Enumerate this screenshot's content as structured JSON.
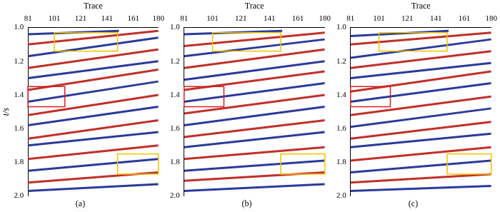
{
  "chart_data": [
    {
      "type": "line",
      "title": "(a)",
      "x_label": "Trace",
      "y_label": "t/s",
      "xlim": [
        81,
        180
      ],
      "xticks": [
        81,
        101,
        121,
        141,
        161,
        180
      ],
      "ylim": [
        1.0,
        2.0
      ],
      "yticks": [
        {
          "value": 1.0,
          "label": "1.0"
        },
        1.2,
        1.4,
        1.6,
        1.8,
        {
          "value": 2.0,
          "label": "2.0"
        }
      ],
      "grid": false,
      "boxes": [
        {
          "x": [
            101,
            149
          ],
          "y": [
            1.03,
            1.14
          ],
          "color": "#f2c200"
        },
        {
          "x": [
            81,
            109
          ],
          "y": [
            1.35,
            1.47
          ],
          "color": "#d62020"
        },
        {
          "x": [
            149,
            180
          ],
          "y": [
            1.75,
            1.87
          ],
          "color": "#f2c200"
        }
      ],
      "series": [
        {
          "color": "#2b3a9a",
          "x": [
            81,
            150
          ],
          "values": [
            1.04,
            1.02
          ]
        },
        {
          "color": "#c0302a",
          "x": [
            81,
            180
          ],
          "values": [
            1.1,
            1.02
          ]
        },
        {
          "color": "#2b3a9a",
          "x": [
            81,
            180
          ],
          "values": [
            1.17,
            1.06
          ]
        },
        {
          "color": "#c0302a",
          "x": [
            81,
            180
          ],
          "values": [
            1.24,
            1.13
          ]
        },
        {
          "color": "#2b3a9a",
          "x": [
            81,
            180
          ],
          "values": [
            1.3,
            1.2
          ]
        },
        {
          "color": "#c0302a",
          "x": [
            81,
            180
          ],
          "values": [
            1.37,
            1.25
          ]
        },
        {
          "color": "#2b3a9a",
          "x": [
            81,
            180
          ],
          "values": [
            1.44,
            1.32
          ]
        },
        {
          "color": "#c0302a",
          "x": [
            81,
            180
          ],
          "values": [
            1.52,
            1.4
          ]
        },
        {
          "color": "#2b3a9a",
          "x": [
            81,
            180
          ],
          "values": [
            1.58,
            1.47
          ]
        },
        {
          "color": "#c0302a",
          "x": [
            81,
            180
          ],
          "values": [
            1.66,
            1.55
          ]
        },
        {
          "color": "#2b3a9a",
          "x": [
            81,
            180
          ],
          "values": [
            1.7,
            1.62
          ]
        },
        {
          "color": "#c0302a",
          "x": [
            81,
            180
          ],
          "values": [
            1.78,
            1.7
          ]
        },
        {
          "color": "#2b3a9a",
          "x": [
            81,
            180
          ],
          "values": [
            1.85,
            1.78
          ]
        },
        {
          "color": "#c0302a",
          "x": [
            81,
            180
          ],
          "values": [
            1.92,
            1.86
          ]
        },
        {
          "color": "#2b3a9a",
          "x": [
            81,
            180
          ],
          "values": [
            1.97,
            1.93
          ]
        }
      ]
    },
    {
      "type": "line",
      "title": "(b)",
      "x_label": "Trace",
      "xlim": [
        81,
        180
      ],
      "xticks": [
        81,
        101,
        121,
        141,
        161,
        180
      ],
      "ylim": [
        1.0,
        2.0
      ],
      "yticks": [
        {
          "value": 1.0,
          "label": "1.0"
        },
        1.2,
        1.4,
        1.6,
        1.8,
        {
          "value": 2.0,
          "label": "2.0"
        }
      ],
      "grid": false,
      "boxes": [
        {
          "x": [
            101,
            149
          ],
          "y": [
            1.03,
            1.14
          ],
          "color": "#f2c200"
        },
        {
          "x": [
            81,
            109
          ],
          "y": [
            1.35,
            1.47
          ],
          "color": "#d62020"
        },
        {
          "x": [
            149,
            180
          ],
          "y": [
            1.75,
            1.87
          ],
          "color": "#f2c200"
        }
      ],
      "series": [
        {
          "color": "#2b3a9a",
          "x": [
            81,
            150
          ],
          "values": [
            1.04,
            1.02
          ]
        },
        {
          "color": "#c0302a",
          "x": [
            81,
            180
          ],
          "values": [
            1.11,
            1.03
          ]
        },
        {
          "color": "#2b3a9a",
          "x": [
            81,
            180
          ],
          "values": [
            1.17,
            1.07
          ]
        },
        {
          "color": "#c0302a",
          "x": [
            81,
            180
          ],
          "values": [
            1.24,
            1.13
          ]
        },
        {
          "color": "#2b3a9a",
          "x": [
            81,
            180
          ],
          "values": [
            1.31,
            1.2
          ]
        },
        {
          "color": "#c0302a",
          "x": [
            81,
            180
          ],
          "values": [
            1.37,
            1.26
          ]
        },
        {
          "color": "#2b3a9a",
          "x": [
            81,
            180
          ],
          "values": [
            1.44,
            1.33
          ]
        },
        {
          "color": "#c0302a",
          "x": [
            81,
            180
          ],
          "values": [
            1.51,
            1.4
          ]
        },
        {
          "color": "#2b3a9a",
          "x": [
            81,
            180
          ],
          "values": [
            1.58,
            1.47
          ]
        },
        {
          "color": "#c0302a",
          "x": [
            81,
            180
          ],
          "values": [
            1.65,
            1.55
          ]
        },
        {
          "color": "#2b3a9a",
          "x": [
            81,
            180
          ],
          "values": [
            1.71,
            1.62
          ]
        },
        {
          "color": "#c0302a",
          "x": [
            81,
            180
          ],
          "values": [
            1.78,
            1.71
          ]
        },
        {
          "color": "#2b3a9a",
          "x": [
            81,
            180
          ],
          "values": [
            1.85,
            1.79
          ]
        },
        {
          "color": "#c0302a",
          "x": [
            81,
            180
          ],
          "values": [
            1.91,
            1.86
          ]
        },
        {
          "color": "#2b3a9a",
          "x": [
            81,
            180
          ],
          "values": [
            1.97,
            1.93
          ]
        }
      ]
    },
    {
      "type": "line",
      "title": "(c)",
      "x_label": "Trace",
      "xlim": [
        81,
        180
      ],
      "xticks": [
        81,
        101,
        121,
        141,
        161,
        180
      ],
      "ylim": [
        1.0,
        2.0
      ],
      "yticks": [
        {
          "value": 1.0,
          "label": "1.0"
        },
        1.2,
        1.4,
        1.6,
        1.8,
        {
          "value": 2.0,
          "label": "2.0"
        }
      ],
      "grid": false,
      "boxes": [
        {
          "x": [
            101,
            149
          ],
          "y": [
            1.03,
            1.14
          ],
          "color": "#f2c200"
        },
        {
          "x": [
            81,
            109
          ],
          "y": [
            1.35,
            1.47
          ],
          "color": "#d62020"
        },
        {
          "x": [
            149,
            180
          ],
          "y": [
            1.75,
            1.87
          ],
          "color": "#f2c200"
        }
      ],
      "series": [
        {
          "color": "#2b3a9a",
          "x": [
            81,
            150
          ],
          "values": [
            1.05,
            1.02
          ]
        },
        {
          "color": "#c0302a",
          "x": [
            81,
            180
          ],
          "values": [
            1.1,
            1.03
          ]
        },
        {
          "color": "#2b3a9a",
          "x": [
            81,
            180
          ],
          "values": [
            1.18,
            1.07
          ]
        },
        {
          "color": "#c0302a",
          "x": [
            81,
            180
          ],
          "values": [
            1.24,
            1.14
          ]
        },
        {
          "color": "#2b3a9a",
          "x": [
            81,
            180
          ],
          "values": [
            1.3,
            1.21
          ]
        },
        {
          "color": "#c0302a",
          "x": [
            81,
            180
          ],
          "values": [
            1.38,
            1.26
          ]
        },
        {
          "color": "#2b3a9a",
          "x": [
            81,
            180
          ],
          "values": [
            1.44,
            1.33
          ]
        },
        {
          "color": "#c0302a",
          "x": [
            81,
            180
          ],
          "values": [
            1.52,
            1.41
          ]
        },
        {
          "color": "#2b3a9a",
          "x": [
            81,
            180
          ],
          "values": [
            1.59,
            1.48
          ]
        },
        {
          "color": "#c0302a",
          "x": [
            81,
            180
          ],
          "values": [
            1.66,
            1.56
          ]
        },
        {
          "color": "#2b3a9a",
          "x": [
            81,
            180
          ],
          "values": [
            1.71,
            1.63
          ]
        },
        {
          "color": "#c0302a",
          "x": [
            81,
            180
          ],
          "values": [
            1.79,
            1.71
          ]
        },
        {
          "color": "#2b3a9a",
          "x": [
            81,
            180
          ],
          "values": [
            1.86,
            1.79
          ]
        },
        {
          "color": "#c0302a",
          "x": [
            81,
            180
          ],
          "values": [
            1.92,
            1.87
          ]
        },
        {
          "color": "#2b3a9a",
          "x": [
            81,
            180
          ],
          "values": [
            1.97,
            1.94
          ]
        }
      ]
    }
  ]
}
